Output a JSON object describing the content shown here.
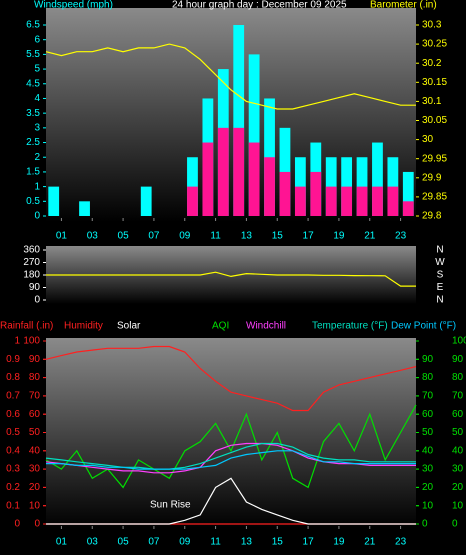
{
  "chart_data": [
    {
      "type": "bar_line",
      "title": "24 hour graph day : December 09 2025",
      "ylabel": "Windspeed (mph)",
      "y2label": "Barometer (.in)",
      "xlim": [
        0,
        24
      ],
      "xticks": [
        {
          "value": 1,
          "label": "01"
        },
        {
          "value": 3,
          "label": "03"
        },
        {
          "value": 5,
          "label": "05"
        },
        {
          "value": 7,
          "label": "07"
        },
        {
          "value": 9,
          "label": "09"
        },
        {
          "value": 11,
          "label": "11"
        },
        {
          "value": 13,
          "label": "13"
        },
        {
          "value": 15,
          "label": "15"
        },
        {
          "value": 17,
          "label": "17"
        },
        {
          "value": 19,
          "label": "19"
        },
        {
          "value": 21,
          "label": "21"
        },
        {
          "value": 23,
          "label": "23"
        }
      ],
      "ylim": [
        0,
        6.5
      ],
      "yticks": [
        0,
        0.5,
        1,
        1.5,
        2,
        2.5,
        3,
        3.5,
        4,
        4.5,
        5,
        5.5,
        6,
        6.5
      ],
      "y2lim": [
        29.8,
        30.3
      ],
      "y2ticks": [
        29.8,
        29.85,
        29.9,
        29.95,
        30,
        30.05,
        30.1,
        30.15,
        30.2,
        30.25,
        30.3
      ],
      "series": [
        {
          "type": "bar",
          "color": "#00ffff",
          "x": [
            0,
            1,
            2,
            3,
            4,
            5,
            6,
            7,
            8,
            9,
            10,
            11,
            12,
            13,
            14,
            15,
            16,
            17,
            18,
            19,
            20,
            21,
            22,
            23
          ],
          "values": [
            1,
            0,
            0.5,
            0,
            0,
            0,
            1,
            0,
            0,
            2,
            4,
            5,
            6.5,
            5.5,
            4,
            3,
            2,
            2.5,
            2,
            2,
            2,
            2.5,
            2,
            1.5
          ]
        },
        {
          "type": "bar",
          "color": "#ff1493",
          "x": [
            0,
            1,
            2,
            3,
            4,
            5,
            6,
            7,
            8,
            9,
            10,
            11,
            12,
            13,
            14,
            15,
            16,
            17,
            18,
            19,
            20,
            21,
            22,
            23
          ],
          "values": [
            0,
            0,
            0,
            0,
            0,
            0,
            0,
            0,
            0,
            1,
            2.5,
            3,
            3,
            2.5,
            2,
            1.5,
            1,
            1.5,
            1,
            1,
            1,
            1,
            1,
            0.5
          ]
        },
        {
          "type": "line",
          "axis": "y2",
          "color": "#ffff00",
          "x": [
            0,
            1,
            2,
            3,
            4,
            5,
            6,
            7,
            8,
            9,
            10,
            11,
            12,
            13,
            14,
            15,
            16,
            17,
            18,
            19,
            20,
            21,
            22,
            23,
            24
          ],
          "values": [
            30.23,
            30.22,
            30.23,
            30.23,
            30.24,
            30.23,
            30.24,
            30.24,
            30.25,
            30.24,
            30.21,
            30.17,
            30.13,
            30.1,
            30.09,
            30.08,
            30.08,
            30.09,
            30.1,
            30.11,
            30.12,
            30.11,
            30.1,
            30.09,
            30.09
          ]
        }
      ]
    },
    {
      "type": "line",
      "ylim": [
        0,
        360
      ],
      "yticks": [
        0,
        90,
        180,
        270,
        360
      ],
      "direction_labels": [
        "N",
        "W",
        "S",
        "E",
        "N"
      ],
      "xlim": [
        0,
        24
      ],
      "series": [
        {
          "color": "#ffff00",
          "x": [
            0,
            1,
            2,
            3,
            4,
            5,
            6,
            7,
            8,
            9,
            10,
            11,
            12,
            13,
            14,
            15,
            16,
            17,
            18,
            19,
            20,
            21,
            22,
            23,
            24
          ],
          "values": [
            180,
            180,
            180,
            180,
            180,
            180,
            180,
            180,
            180,
            180,
            180,
            200,
            170,
            190,
            185,
            180,
            180,
            180,
            178,
            178,
            176,
            175,
            174,
            100,
            100
          ]
        }
      ]
    },
    {
      "type": "line",
      "xlim": [
        0,
        24
      ],
      "xticks": [
        {
          "value": 1,
          "label": "01"
        },
        {
          "value": 3,
          "label": "03"
        },
        {
          "value": 5,
          "label": "05"
        },
        {
          "value": 7,
          "label": "07"
        },
        {
          "value": 9,
          "label": "09"
        },
        {
          "value": 11,
          "label": "11"
        },
        {
          "value": 13,
          "label": "13"
        },
        {
          "value": 15,
          "label": "15"
        },
        {
          "value": 17,
          "label": "17"
        },
        {
          "value": 19,
          "label": "19"
        },
        {
          "value": 21,
          "label": "21"
        },
        {
          "value": 23,
          "label": "23"
        }
      ],
      "ylim": [
        0,
        100
      ],
      "yticks": [
        0,
        10,
        20,
        30,
        40,
        50,
        60,
        70,
        80,
        90,
        100
      ],
      "rain_lim": [
        0,
        1
      ],
      "rain_ticks": [
        0,
        0.1,
        0.2,
        0.3,
        0.4,
        0.5,
        0.6,
        0.7,
        0.8,
        0.9,
        1
      ],
      "y2lim": [
        0,
        100
      ],
      "y2ticks": [
        0,
        10,
        20,
        30,
        40,
        50,
        60,
        70,
        80,
        90,
        100
      ],
      "temp_ticks": [
        0,
        10,
        20,
        30,
        40,
        50,
        60,
        70,
        80,
        90
      ],
      "annotation": "Sun Rise",
      "series": [
        {
          "name": "Rainfall (.in)",
          "axis": "rain",
          "color": "#ff2020",
          "x": [
            0,
            1,
            2,
            3,
            4,
            5,
            6,
            7,
            8,
            9,
            10,
            11,
            12,
            13,
            14,
            15,
            16,
            17,
            18,
            19,
            20,
            21,
            22,
            23,
            24
          ],
          "values": [
            0,
            0,
            0,
            0,
            0,
            0,
            0,
            0,
            0,
            0,
            0,
            0,
            0,
            0,
            0,
            0,
            0,
            0,
            0,
            0,
            0,
            0,
            0,
            0,
            0
          ]
        },
        {
          "name": "Humidity",
          "color": "#ff2020",
          "x": [
            0,
            1,
            2,
            3,
            4,
            5,
            6,
            7,
            8,
            9,
            10,
            11,
            12,
            13,
            14,
            15,
            16,
            17,
            18,
            19,
            20,
            21,
            22,
            23,
            24
          ],
          "values": [
            90,
            92,
            94,
            95,
            96,
            96,
            96,
            97,
            97,
            94,
            85,
            78,
            72,
            70,
            68,
            66,
            62,
            62,
            72,
            76,
            78,
            80,
            82,
            84,
            86
          ]
        },
        {
          "name": "Solar",
          "color": "#ffffff",
          "x": [
            0,
            1,
            2,
            3,
            4,
            5,
            6,
            7,
            8,
            9,
            10,
            11,
            12,
            13,
            14,
            15,
            16,
            17,
            18,
            19,
            20,
            21,
            22,
            23,
            24
          ],
          "values": [
            0,
            0,
            0,
            0,
            0,
            0,
            0,
            0,
            0,
            2,
            5,
            20,
            25,
            12,
            8,
            5,
            2,
            0,
            0,
            0,
            0,
            0,
            0,
            0,
            0
          ]
        },
        {
          "name": "AQI",
          "color": "#00e000",
          "x": [
            0,
            1,
            2,
            3,
            4,
            5,
            6,
            7,
            8,
            9,
            10,
            11,
            12,
            13,
            14,
            15,
            16,
            17,
            18,
            19,
            20,
            21,
            22,
            23,
            24
          ],
          "values": [
            35,
            30,
            40,
            25,
            30,
            20,
            35,
            30,
            25,
            40,
            45,
            55,
            40,
            60,
            35,
            50,
            25,
            20,
            45,
            55,
            40,
            60,
            35,
            50,
            65
          ]
        },
        {
          "name": "Windchill",
          "color": "#ff40ff",
          "x": [
            0,
            1,
            2,
            3,
            4,
            5,
            6,
            7,
            8,
            9,
            10,
            11,
            12,
            13,
            14,
            15,
            16,
            17,
            18,
            19,
            20,
            21,
            22,
            23,
            24
          ],
          "values": [
            34,
            33,
            32,
            31,
            30,
            29,
            29,
            28,
            28,
            29,
            31,
            40,
            43,
            44,
            44,
            43,
            40,
            36,
            34,
            33,
            33,
            32,
            32,
            32,
            32
          ]
        },
        {
          "name": "Temperature (°F)",
          "axis": "y2",
          "color": "#00e0c0",
          "x": [
            0,
            1,
            2,
            3,
            4,
            5,
            6,
            7,
            8,
            9,
            10,
            11,
            12,
            13,
            14,
            15,
            16,
            17,
            18,
            19,
            20,
            21,
            22,
            23,
            24
          ],
          "values": [
            36,
            35,
            34,
            33,
            32,
            31,
            31,
            30,
            30,
            31,
            33,
            36,
            39,
            42,
            44,
            44,
            42,
            38,
            36,
            35,
            35,
            34,
            34,
            34,
            34
          ]
        },
        {
          "name": "Dew Point (°F)",
          "axis": "y2",
          "color": "#00c8ff",
          "x": [
            0,
            1,
            2,
            3,
            4,
            5,
            6,
            7,
            8,
            9,
            10,
            11,
            12,
            13,
            14,
            15,
            16,
            17,
            18,
            19,
            20,
            21,
            22,
            23,
            24
          ],
          "values": [
            33,
            33,
            32,
            32,
            31,
            31,
            30,
            30,
            30,
            30,
            31,
            32,
            36,
            38,
            39,
            40,
            40,
            37,
            34,
            34,
            33,
            33,
            33,
            33,
            33
          ]
        }
      ]
    }
  ]
}
